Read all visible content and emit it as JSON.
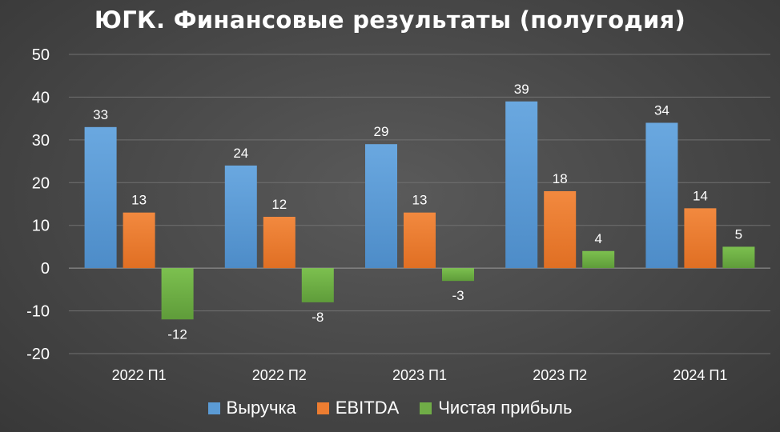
{
  "chart_data": {
    "type": "bar",
    "title": "ЮГК. Финансовые результаты (полугодия)",
    "categories": [
      "2022 П1",
      "2022 П2",
      "2023 П1",
      "2023 П2",
      "2024 П1"
    ],
    "series": [
      {
        "name": "Выручка",
        "color": "#5b9bd5",
        "values": [
          33,
          24,
          29,
          39,
          34
        ],
        "labels": [
          "33",
          "24",
          "29",
          "39",
          "34"
        ]
      },
      {
        "name": "EBITDA",
        "color": "#ed7d31",
        "values": [
          13,
          12,
          13,
          18,
          14
        ],
        "labels": [
          "13",
          "12",
          "13",
          "18",
          "14"
        ]
      },
      {
        "name": "Чистая прибыль",
        "color": "#70ad47",
        "values": [
          -12,
          -8,
          -3,
          4,
          5
        ],
        "labels": [
          "-12",
          "-8",
          "-3",
          "4",
          "5"
        ]
      }
    ],
    "ylim": [
      -20,
      50
    ],
    "yticks": [
      "-20",
      "-10",
      "0",
      "10",
      "20",
      "30",
      "40",
      "50"
    ],
    "xlabel": "",
    "ylabel": "",
    "grid": true,
    "legend": "bottom"
  }
}
